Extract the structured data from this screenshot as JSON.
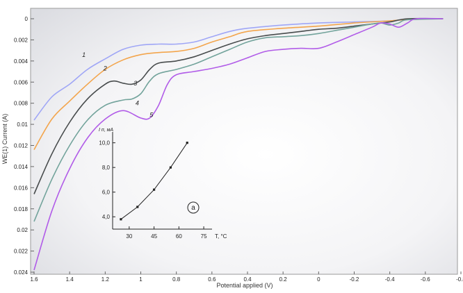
{
  "chart_data": {
    "type": "line",
    "xlabel": "Potential applied (V)",
    "ylabel": "WE(1) Current (A)",
    "x_reversed": true,
    "y_inverted": true,
    "xlim": [
      1.6,
      -0.8
    ],
    "ylim": [
      0,
      0.024
    ],
    "x_ticks": [
      {
        "value": 1.6,
        "label": "1.6"
      },
      {
        "value": 1.4,
        "label": "1.4"
      },
      {
        "value": 1.2,
        "label": "1.2"
      },
      {
        "value": 1.0,
        "label": "1"
      },
      {
        "value": 0.8,
        "label": "0.8"
      },
      {
        "value": 0.6,
        "label": "0.6"
      },
      {
        "value": 0.4,
        "label": "0.4"
      },
      {
        "value": 0.2,
        "label": "0.2"
      },
      {
        "value": 0.0,
        "label": "0"
      },
      {
        "value": -0.2,
        "label": "-0.2"
      },
      {
        "value": -0.4,
        "label": "-0.4"
      },
      {
        "value": -0.6,
        "label": "-0.6"
      },
      {
        "value": -0.8,
        "label": "-0.8"
      }
    ],
    "y_ticks": [
      {
        "value": 0,
        "label": "0"
      },
      {
        "value": 0.002,
        "label": "0.002"
      },
      {
        "value": 0.004,
        "label": "0.004"
      },
      {
        "value": 0.006,
        "label": "0.006"
      },
      {
        "value": 0.008,
        "label": "0.008"
      },
      {
        "value": 0.01,
        "label": "0.01"
      },
      {
        "value": 0.012,
        "label": "0.012"
      },
      {
        "value": 0.014,
        "label": "0.014"
      },
      {
        "value": 0.016,
        "label": "0.016"
      },
      {
        "value": 0.018,
        "label": "0.018"
      },
      {
        "value": 0.02,
        "label": "0.02"
      },
      {
        "value": 0.022,
        "label": "0.022"
      },
      {
        "value": 0.024,
        "label": "0.024"
      }
    ],
    "series": [
      {
        "curve_label": "1",
        "color": "#9fa6f6",
        "label_at": [
          1.33,
          0.0036
        ],
        "points": [
          [
            1.6,
            0.0096
          ],
          [
            1.5,
            0.0074
          ],
          [
            1.4,
            0.0062
          ],
          [
            1.3,
            0.0048
          ],
          [
            1.2,
            0.0038
          ],
          [
            1.1,
            0.0029
          ],
          [
            1.0,
            0.0025
          ],
          [
            0.9,
            0.0024
          ],
          [
            0.8,
            0.0024
          ],
          [
            0.7,
            0.0022
          ],
          [
            0.6,
            0.0017
          ],
          [
            0.5,
            0.0012
          ],
          [
            0.4,
            0.0009
          ],
          [
            0.2,
            0.0006
          ],
          [
            0.0,
            0.0004
          ],
          [
            -0.2,
            0.0003
          ],
          [
            -0.4,
            0.0002
          ],
          [
            -0.55,
            0.0
          ],
          [
            -0.7,
            0.0
          ]
        ]
      },
      {
        "curve_label": "2",
        "color": "#f3a54c",
        "label_at": [
          1.21,
          0.0049
        ],
        "points": [
          [
            1.6,
            0.0124
          ],
          [
            1.5,
            0.0095
          ],
          [
            1.4,
            0.0078
          ],
          [
            1.3,
            0.0062
          ],
          [
            1.2,
            0.0048
          ],
          [
            1.1,
            0.0039
          ],
          [
            1.0,
            0.0034
          ],
          [
            0.9,
            0.0032
          ],
          [
            0.8,
            0.0031
          ],
          [
            0.7,
            0.0028
          ],
          [
            0.6,
            0.0022
          ],
          [
            0.5,
            0.0017
          ],
          [
            0.4,
            0.0012
          ],
          [
            0.2,
            0.0009
          ],
          [
            0.0,
            0.0007
          ],
          [
            -0.2,
            0.0004
          ],
          [
            -0.4,
            0.0002
          ],
          [
            -0.55,
            0.0
          ],
          [
            -0.7,
            0.0
          ]
        ]
      },
      {
        "curve_label": "3",
        "color": "#474b4c",
        "label_at": [
          1.04,
          0.0063
        ],
        "points": [
          [
            1.6,
            0.0166
          ],
          [
            1.5,
            0.0128
          ],
          [
            1.4,
            0.0098
          ],
          [
            1.3,
            0.0076
          ],
          [
            1.2,
            0.0062
          ],
          [
            1.15,
            0.0059
          ],
          [
            1.1,
            0.0061
          ],
          [
            1.05,
            0.0062
          ],
          [
            1.0,
            0.0058
          ],
          [
            0.95,
            0.0048
          ],
          [
            0.9,
            0.0042
          ],
          [
            0.8,
            0.004
          ],
          [
            0.7,
            0.0036
          ],
          [
            0.6,
            0.003
          ],
          [
            0.5,
            0.0024
          ],
          [
            0.4,
            0.0019
          ],
          [
            0.3,
            0.0016
          ],
          [
            0.2,
            0.0014
          ],
          [
            0.1,
            0.0012
          ],
          [
            0.0,
            0.001
          ],
          [
            -0.1,
            0.0009
          ],
          [
            -0.2,
            0.0007
          ],
          [
            -0.3,
            0.0005
          ],
          [
            -0.4,
            0.0003
          ],
          [
            -0.5,
            0.0
          ],
          [
            -0.7,
            0.0
          ]
        ]
      },
      {
        "curve_label": "4",
        "color": "#72a39b",
        "label_at": [
          1.03,
          0.0082
        ],
        "points": [
          [
            1.6,
            0.0192
          ],
          [
            1.5,
            0.0152
          ],
          [
            1.4,
            0.012
          ],
          [
            1.3,
            0.0096
          ],
          [
            1.2,
            0.0082
          ],
          [
            1.1,
            0.0077
          ],
          [
            1.05,
            0.0076
          ],
          [
            1.0,
            0.0071
          ],
          [
            0.95,
            0.0059
          ],
          [
            0.9,
            0.0052
          ],
          [
            0.8,
            0.0048
          ],
          [
            0.7,
            0.0043
          ],
          [
            0.6,
            0.0036
          ],
          [
            0.5,
            0.0029
          ],
          [
            0.4,
            0.0022
          ],
          [
            0.3,
            0.0018
          ],
          [
            0.2,
            0.0017
          ],
          [
            0.1,
            0.0016
          ],
          [
            0.0,
            0.0014
          ],
          [
            -0.1,
            0.0011
          ],
          [
            -0.2,
            0.0008
          ],
          [
            -0.3,
            0.0005
          ],
          [
            -0.35,
            0.0004
          ],
          [
            -0.4,
            0.0006
          ],
          [
            -0.45,
            0.0004
          ],
          [
            -0.5,
            0.0001
          ],
          [
            -0.7,
            0.0
          ]
        ]
      },
      {
        "curve_label": "5",
        "color": "#b15ce8",
        "label_at": [
          0.95,
          0.0093
        ],
        "points": [
          [
            1.6,
            0.0238
          ],
          [
            1.5,
            0.0182
          ],
          [
            1.4,
            0.0142
          ],
          [
            1.3,
            0.0113
          ],
          [
            1.2,
            0.0095
          ],
          [
            1.1,
            0.0087
          ],
          [
            1.0,
            0.0094
          ],
          [
            0.95,
            0.0094
          ],
          [
            0.9,
            0.0082
          ],
          [
            0.85,
            0.0062
          ],
          [
            0.8,
            0.0053
          ],
          [
            0.7,
            0.005
          ],
          [
            0.6,
            0.0047
          ],
          [
            0.5,
            0.0043
          ],
          [
            0.4,
            0.0037
          ],
          [
            0.3,
            0.0031
          ],
          [
            0.2,
            0.0029
          ],
          [
            0.1,
            0.0028
          ],
          [
            0.0,
            0.0028
          ],
          [
            -0.1,
            0.0022
          ],
          [
            -0.2,
            0.0015
          ],
          [
            -0.3,
            0.0008
          ],
          [
            -0.35,
            0.0004
          ],
          [
            -0.4,
            0.0005
          ],
          [
            -0.45,
            0.0008
          ],
          [
            -0.5,
            0.0004
          ],
          [
            -0.55,
            0.0
          ],
          [
            -0.7,
            0.0
          ]
        ]
      }
    ],
    "inset": {
      "ylabel": "I п, мА",
      "xlabel": "T, °C",
      "panel_label": "a",
      "xlim": [
        20,
        80
      ],
      "ylim": [
        3.0,
        10.6
      ],
      "x_ticks": [
        {
          "value": 30,
          "label": "30"
        },
        {
          "value": 45,
          "label": "45"
        },
        {
          "value": 60,
          "label": "60"
        },
        {
          "value": 75,
          "label": "75"
        }
      ],
      "y_ticks": [
        {
          "value": 4.0,
          "label": "4,0"
        },
        {
          "value": 6.0,
          "label": "6,0"
        },
        {
          "value": 8.0,
          "label": "8,0"
        },
        {
          "value": 10.0,
          "label": "10,0"
        }
      ],
      "points": [
        [
          25,
          3.8
        ],
        [
          35,
          4.8
        ],
        [
          45,
          6.2
        ],
        [
          55,
          8.0
        ],
        [
          65,
          10.0
        ]
      ]
    }
  }
}
